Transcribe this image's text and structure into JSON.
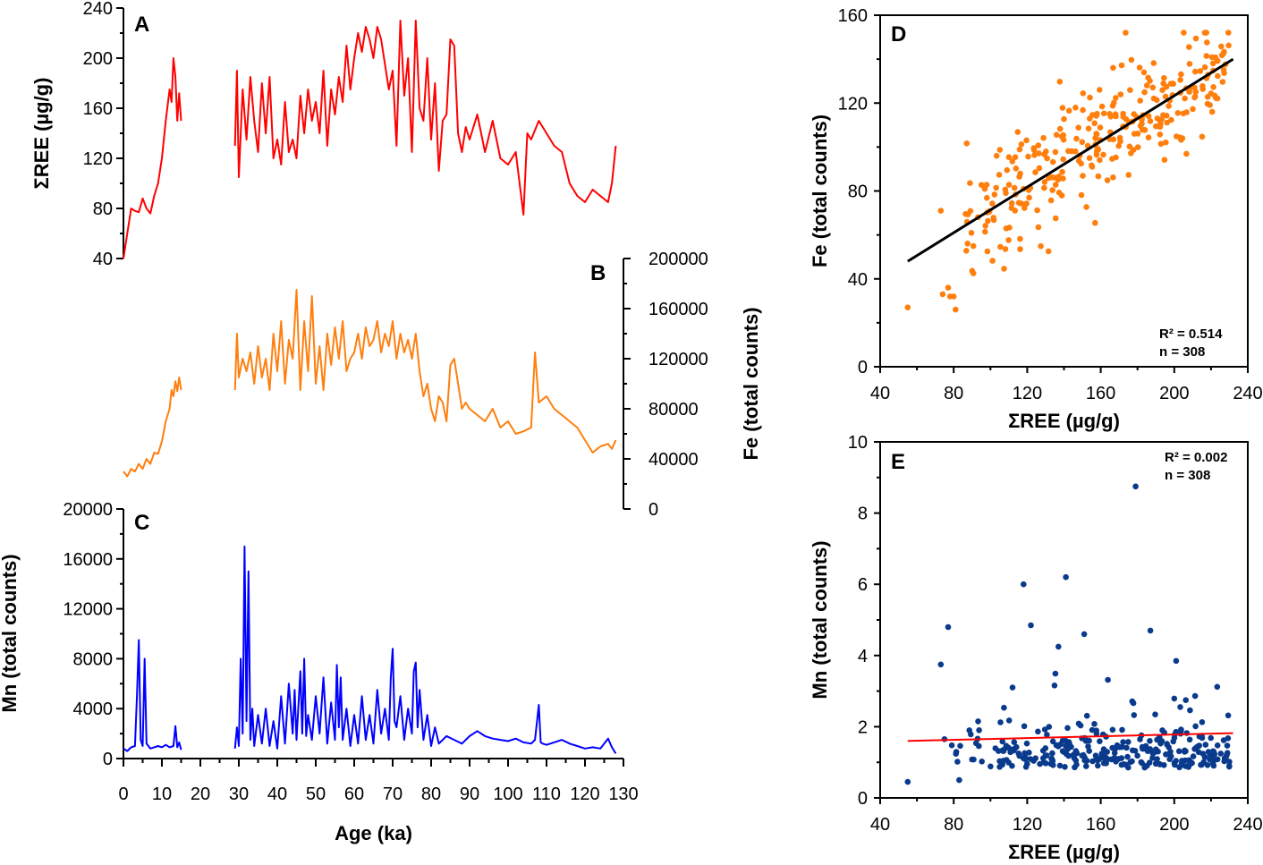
{
  "chart_data": [
    {
      "type": "line",
      "panel": "A",
      "ylabel": "ΣREE (µg/g)",
      "ylim": [
        40,
        240
      ],
      "yticks": [
        40,
        80,
        120,
        160,
        200,
        240
      ],
      "xlim": [
        0,
        130
      ],
      "color": "#ff0000",
      "series": [
        {
          "name": "ΣREE segment 1",
          "x": [
            0,
            1,
            2,
            3,
            4,
            5,
            6,
            7,
            8,
            9,
            10,
            11,
            12,
            12.5,
            13,
            13.5,
            14,
            14.5,
            15
          ],
          "values": [
            40,
            60,
            80,
            78,
            77,
            88,
            80,
            76,
            90,
            100,
            120,
            150,
            175,
            165,
            200,
            185,
            150,
            172,
            150
          ]
        },
        {
          "name": "ΣREE segment 2",
          "x": [
            29,
            29.5,
            30,
            31,
            32,
            33,
            34,
            35,
            36,
            37,
            38,
            39,
            40,
            41,
            42,
            43,
            44,
            45,
            46,
            47,
            48,
            49,
            50,
            51,
            52,
            53,
            54,
            55,
            56,
            57,
            58,
            59,
            60,
            61,
            62,
            63,
            64,
            65,
            66,
            67,
            68,
            69,
            70,
            71,
            72,
            73,
            74,
            75,
            76,
            77,
            78,
            79,
            80,
            81,
            82,
            83,
            84,
            85,
            86,
            87,
            88,
            89,
            90,
            92,
            94,
            96,
            98,
            100,
            102,
            104,
            105,
            106,
            108,
            110,
            112,
            114,
            116,
            118,
            120,
            122,
            124,
            126,
            127,
            128
          ],
          "values": [
            130,
            190,
            105,
            175,
            135,
            185,
            150,
            125,
            180,
            140,
            185,
            120,
            135,
            115,
            165,
            125,
            135,
            120,
            170,
            140,
            175,
            150,
            165,
            140,
            190,
            130,
            175,
            155,
            185,
            165,
            210,
            175,
            200,
            220,
            205,
            225,
            215,
            200,
            225,
            215,
            195,
            175,
            190,
            130,
            230,
            170,
            200,
            125,
            230,
            160,
            150,
            200,
            135,
            180,
            110,
            150,
            155,
            215,
            210,
            140,
            125,
            145,
            135,
            155,
            125,
            150,
            120,
            115,
            125,
            75,
            140,
            135,
            150,
            140,
            130,
            125,
            100,
            90,
            85,
            95,
            90,
            85,
            100,
            130
          ]
        }
      ]
    },
    {
      "type": "line",
      "panel": "B",
      "ylabel": "Fe (total counts)",
      "ylim": [
        0,
        200000
      ],
      "yticks": [
        0,
        40000,
        80000,
        120000,
        160000,
        200000
      ],
      "xlim": [
        0,
        130
      ],
      "color": "#ff7f0e",
      "series": [
        {
          "name": "Fe segment 1",
          "x": [
            0,
            1,
            2,
            3,
            4,
            5,
            6,
            7,
            8,
            9,
            10,
            11,
            12,
            12.5,
            13,
            13.5,
            14,
            14.5,
            15
          ],
          "values": [
            30000,
            26000,
            32000,
            30000,
            36000,
            32000,
            40000,
            36000,
            45000,
            44000,
            54000,
            70000,
            80000,
            95000,
            90000,
            102000,
            94000,
            105000,
            95000
          ]
        },
        {
          "name": "Fe segment 2",
          "x": [
            29,
            29.5,
            30,
            31,
            32,
            33,
            34,
            35,
            36,
            37,
            38,
            39,
            40,
            41,
            42,
            43,
            44,
            45,
            46,
            47,
            48,
            49,
            50,
            51,
            52,
            53,
            54,
            55,
            56,
            57,
            58,
            59,
            60,
            61,
            62,
            63,
            64,
            65,
            66,
            67,
            68,
            69,
            70,
            71,
            72,
            73,
            74,
            75,
            76,
            77,
            78,
            79,
            80,
            81,
            82,
            83,
            84,
            85,
            86,
            87,
            88,
            89,
            90,
            92,
            94,
            96,
            98,
            100,
            102,
            104,
            106,
            107,
            108,
            110,
            112,
            114,
            116,
            118,
            120,
            122,
            124,
            126,
            127,
            128
          ],
          "values": [
            95000,
            140000,
            105000,
            120000,
            110000,
            125000,
            100000,
            130000,
            105000,
            120000,
            95000,
            140000,
            110000,
            150000,
            100000,
            135000,
            120000,
            175000,
            95000,
            150000,
            110000,
            170000,
            100000,
            130000,
            95000,
            140000,
            115000,
            145000,
            120000,
            150000,
            110000,
            120000,
            125000,
            140000,
            120000,
            145000,
            130000,
            135000,
            150000,
            125000,
            140000,
            130000,
            150000,
            120000,
            140000,
            125000,
            135000,
            120000,
            140000,
            110000,
            90000,
            100000,
            80000,
            70000,
            90000,
            85000,
            70000,
            115000,
            120000,
            100000,
            80000,
            85000,
            80000,
            75000,
            70000,
            80000,
            65000,
            70000,
            60000,
            62000,
            65000,
            125000,
            85000,
            90000,
            80000,
            75000,
            70000,
            65000,
            55000,
            45000,
            50000,
            52000,
            48000,
            55000
          ]
        }
      ]
    },
    {
      "type": "line",
      "panel": "C",
      "ylabel": "Mn (total counts)",
      "xlabel": "Age (ka)",
      "ylim": [
        0,
        20000
      ],
      "yticks": [
        0,
        4000,
        8000,
        12000,
        16000,
        20000
      ],
      "xlim": [
        0,
        130
      ],
      "xticks": [
        0,
        10,
        20,
        30,
        40,
        50,
        60,
        70,
        80,
        90,
        100,
        110,
        120,
        130
      ],
      "color": "#0000ff",
      "series": [
        {
          "name": "Mn segment 1",
          "x": [
            0,
            1,
            2,
            3,
            3.5,
            4,
            4.5,
            5,
            5.5,
            6,
            7,
            8,
            9,
            10,
            11,
            12,
            13,
            13.5,
            14,
            14.5,
            15
          ],
          "values": [
            800,
            600,
            900,
            1000,
            5000,
            9500,
            1500,
            1000,
            8000,
            1200,
            800,
            900,
            1000,
            900,
            1100,
            900,
            1000,
            2600,
            900,
            1300,
            700
          ]
        },
        {
          "name": "Mn segment 2",
          "x": [
            29,
            29.5,
            30,
            30.5,
            31,
            31.5,
            32,
            32.5,
            33,
            33.5,
            34,
            35,
            36,
            37,
            38,
            39,
            40,
            41,
            42,
            43,
            44,
            44.5,
            45,
            46,
            46.5,
            47,
            47.5,
            48,
            49,
            50,
            51,
            52,
            53,
            54,
            55,
            55.5,
            56,
            56.5,
            57,
            58,
            59,
            60,
            61,
            62,
            63,
            64,
            65,
            66,
            67,
            68,
            69,
            69.5,
            70,
            70.5,
            71,
            72,
            73,
            74,
            75,
            75.5,
            76,
            76.5,
            77,
            78,
            79,
            80,
            81,
            82,
            84,
            86,
            88,
            90,
            92,
            94,
            96,
            98,
            100,
            102,
            104,
            106,
            107,
            108,
            108.5,
            109,
            110,
            112,
            114,
            116,
            118,
            120,
            122,
            124,
            126,
            127,
            128
          ],
          "values": [
            800,
            2500,
            1000,
            8000,
            2000,
            17000,
            3000,
            15000,
            1500,
            4000,
            1000,
            3500,
            1200,
            4000,
            1000,
            3000,
            800,
            5000,
            1200,
            6000,
            2000,
            5500,
            1500,
            7000,
            2000,
            8000,
            1800,
            3500,
            1500,
            5000,
            2000,
            6500,
            1200,
            4500,
            1500,
            7500,
            2500,
            6500,
            1500,
            4000,
            1000,
            3500,
            1200,
            5000,
            1500,
            3500,
            1200,
            5500,
            2000,
            4000,
            1500,
            6500,
            8800,
            3000,
            2500,
            5000,
            1500,
            4000,
            2000,
            7000,
            7700,
            2500,
            5500,
            1500,
            3500,
            1000,
            2500,
            1200,
            1800,
            1500,
            1200,
            1800,
            2200,
            1800,
            1600,
            1500,
            1400,
            1600,
            1300,
            1200,
            1500,
            4300,
            1300,
            1200,
            1100,
            1300,
            1500,
            1200,
            1000,
            800,
            900,
            800,
            1600,
            900,
            400
          ]
        }
      ]
    },
    {
      "type": "scatter",
      "panel": "D",
      "xlabel": "ΣREE (µg/g)",
      "ylabel": "Fe (total counts)",
      "xlim": [
        40,
        240
      ],
      "ylim": [
        0,
        160
      ],
      "xticks": [
        40,
        80,
        120,
        160,
        200,
        240
      ],
      "yticks": [
        0,
        40,
        80,
        120,
        160
      ],
      "color": "#ff7f0e",
      "regression": {
        "x": [
          55,
          232
        ],
        "y": [
          48,
          140
        ],
        "color": "#000000"
      },
      "r2": "R² = 0.514",
      "n": "n = 308"
    },
    {
      "type": "scatter",
      "panel": "E",
      "xlabel": "ΣREE (µg/g)",
      "ylabel": "Mn (total counts)",
      "xlim": [
        40,
        240
      ],
      "ylim": [
        0,
        10
      ],
      "xticks": [
        40,
        80,
        120,
        160,
        200,
        240
      ],
      "yticks": [
        0,
        2,
        4,
        6,
        8,
        10
      ],
      "color": "#0a3a8c",
      "regression": {
        "x": [
          55,
          232
        ],
        "y": [
          1.6,
          1.82
        ],
        "color": "#ff0000"
      },
      "r2": "R² = 0.002",
      "n": "n = 308"
    }
  ]
}
